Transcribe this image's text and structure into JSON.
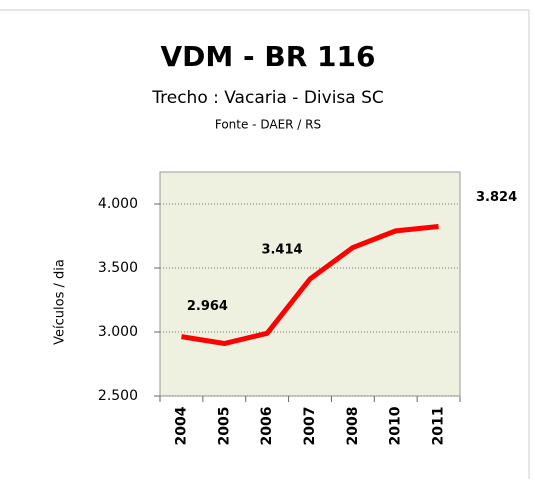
{
  "chart_data": {
    "type": "line",
    "title": "VDM - BR 116",
    "subtitle": "Trecho :  Vacaria - Divisa SC",
    "source": "Fonte - DAER / RS",
    "y_label": "Veículos / dia",
    "categories": [
      "2004",
      "2005",
      "2006",
      "2007",
      "2008",
      "2010",
      "2011"
    ],
    "series": [
      {
        "name": "VDM",
        "color": "#ff0000",
        "values": [
          2964,
          2910,
          2990,
          3414,
          3660,
          3790,
          3824
        ],
        "value_labels": [
          "2.964",
          null,
          null,
          "3.414",
          null,
          null,
          "3.824"
        ]
      }
    ],
    "ylim": [
      2500,
      4250
    ],
    "yticks": [
      {
        "value": 2500,
        "label": "2.500"
      },
      {
        "value": 3000,
        "label": "3.000"
      },
      {
        "value": 3500,
        "label": "3.500"
      },
      {
        "value": 4000,
        "label": "4.000"
      }
    ],
    "grid": true
  }
}
